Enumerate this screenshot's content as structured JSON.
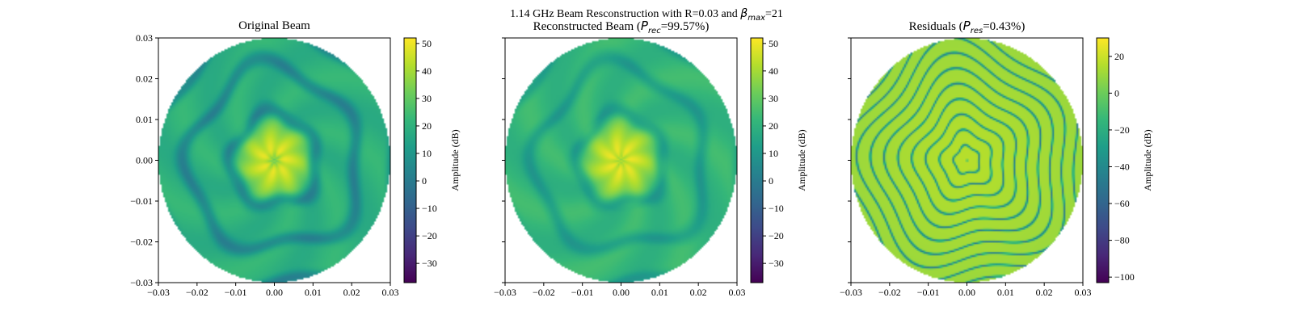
{
  "figure": {
    "suptitle_line1_text": "1.14 GHz Beam Resconstruction with R=0.03 and ",
    "suptitle_line1_symbol": "β",
    "suptitle_line1_sub": "max",
    "suptitle_line1_tail": "=21"
  },
  "chart_data": [
    {
      "type": "heatmap",
      "title": "Original Beam",
      "xlim": [
        -0.03,
        0.03
      ],
      "ylim": [
        -0.03,
        0.03
      ],
      "xticks": [
        "−0.03",
        "−0.02",
        "−0.01",
        "0.00",
        "0.01",
        "0.02",
        "0.03"
      ],
      "yticks": [
        "−0.03",
        "−0.02",
        "−0.01",
        "0.00",
        "0.01",
        "0.02",
        "0.03"
      ],
      "colorbar": {
        "label": "Amplitude (dB)",
        "range": [
          -37,
          52
        ],
        "ticks": [
          -30,
          -20,
          -10,
          0,
          10,
          20,
          30,
          40,
          50
        ]
      },
      "colormap": "viridis",
      "field": {
        "peak_db": 50,
        "aperture_radius": 0.03,
        "ring_spacing": 0.011,
        "ring_depth_db": 16,
        "floor_db": 20
      }
    },
    {
      "type": "heatmap",
      "title_prefix": "Reconstructed Beam (",
      "title_symbol": "P",
      "title_sub": "rec",
      "title_suffix": "=99.57%)",
      "xlim": [
        -0.03,
        0.03
      ],
      "ylim": [
        -0.03,
        0.03
      ],
      "xticks": [
        "−0.03",
        "−0.02",
        "−0.01",
        "0.00",
        "0.01",
        "0.02",
        "0.03"
      ],
      "yticks": [],
      "colorbar": {
        "label": "Amplitude (dB)",
        "range": [
          -37,
          52
        ],
        "ticks": [
          -30,
          -20,
          -10,
          0,
          10,
          20,
          30,
          40,
          50
        ]
      },
      "colormap": "viridis",
      "field": {
        "peak_db": 50,
        "aperture_radius": 0.03,
        "ring_spacing": 0.011,
        "ring_depth_db": 10,
        "floor_db": 22
      }
    },
    {
      "type": "heatmap",
      "title_prefix": "Residuals (",
      "title_symbol": "P",
      "title_sub": "res",
      "title_suffix": "=0.43%)",
      "xlim": [
        -0.03,
        0.03
      ],
      "ylim": [
        -0.03,
        0.03
      ],
      "xticks": [
        "−0.03",
        "−0.02",
        "−0.01",
        "0.00",
        "0.01",
        "0.02",
        "0.03"
      ],
      "yticks": [],
      "colorbar": {
        "label": "Amplitude (dB)",
        "range": [
          -103,
          30
        ],
        "ticks": [
          -100,
          -80,
          -60,
          -40,
          -20,
          0,
          20
        ]
      },
      "colormap": "viridis",
      "field": {
        "peak_db": 14,
        "aperture_radius": 0.03,
        "ring_spacing": 0.0033,
        "ring_depth_db": 60,
        "floor_db": 10
      }
    }
  ]
}
